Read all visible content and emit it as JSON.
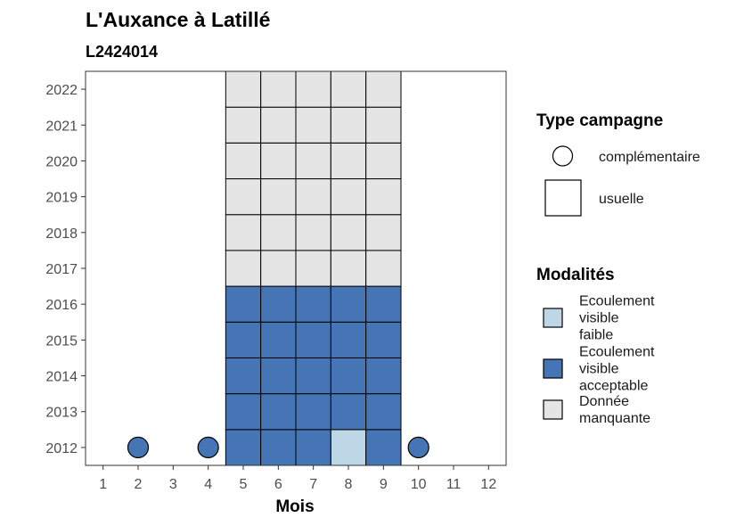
{
  "chart_data": {
    "type": "heatmap",
    "title": "L'Auxance à Latillé",
    "subtitle": "L2424014",
    "xlabel": "Mois",
    "ylabel": "",
    "x_ticks": [
      "1",
      "2",
      "3",
      "4",
      "5",
      "6",
      "7",
      "8",
      "9",
      "10",
      "11",
      "12"
    ],
    "y_ticks": [
      "2012",
      "2013",
      "2014",
      "2015",
      "2016",
      "2017",
      "2018",
      "2019",
      "2020",
      "2021",
      "2022"
    ],
    "xlim": [
      0.5,
      12.5
    ],
    "ylim": [
      2011.5,
      2022.5
    ],
    "grid": false,
    "legend_placement": "right",
    "colors": {
      "faible": "#bdd7e7",
      "acceptable": "#4575b4",
      "manquante": "#e5e5e5",
      "stroke": "#000000",
      "panel_border": "#333333"
    },
    "cells": [
      {
        "year": 2012,
        "month": 5,
        "modalite": "acceptable"
      },
      {
        "year": 2012,
        "month": 6,
        "modalite": "acceptable"
      },
      {
        "year": 2012,
        "month": 7,
        "modalite": "acceptable"
      },
      {
        "year": 2012,
        "month": 8,
        "modalite": "faible"
      },
      {
        "year": 2012,
        "month": 9,
        "modalite": "acceptable"
      },
      {
        "year": 2013,
        "month": 5,
        "modalite": "acceptable"
      },
      {
        "year": 2013,
        "month": 6,
        "modalite": "acceptable"
      },
      {
        "year": 2013,
        "month": 7,
        "modalite": "acceptable"
      },
      {
        "year": 2013,
        "month": 8,
        "modalite": "acceptable"
      },
      {
        "year": 2013,
        "month": 9,
        "modalite": "acceptable"
      },
      {
        "year": 2014,
        "month": 5,
        "modalite": "acceptable"
      },
      {
        "year": 2014,
        "month": 6,
        "modalite": "acceptable"
      },
      {
        "year": 2014,
        "month": 7,
        "modalite": "acceptable"
      },
      {
        "year": 2014,
        "month": 8,
        "modalite": "acceptable"
      },
      {
        "year": 2014,
        "month": 9,
        "modalite": "acceptable"
      },
      {
        "year": 2015,
        "month": 5,
        "modalite": "acceptable"
      },
      {
        "year": 2015,
        "month": 6,
        "modalite": "acceptable"
      },
      {
        "year": 2015,
        "month": 7,
        "modalite": "acceptable"
      },
      {
        "year": 2015,
        "month": 8,
        "modalite": "acceptable"
      },
      {
        "year": 2015,
        "month": 9,
        "modalite": "acceptable"
      },
      {
        "year": 2016,
        "month": 5,
        "modalite": "acceptable"
      },
      {
        "year": 2016,
        "month": 6,
        "modalite": "acceptable"
      },
      {
        "year": 2016,
        "month": 7,
        "modalite": "acceptable"
      },
      {
        "year": 2016,
        "month": 8,
        "modalite": "acceptable"
      },
      {
        "year": 2016,
        "month": 9,
        "modalite": "acceptable"
      },
      {
        "year": 2017,
        "month": 5,
        "modalite": "manquante"
      },
      {
        "year": 2017,
        "month": 6,
        "modalite": "manquante"
      },
      {
        "year": 2017,
        "month": 7,
        "modalite": "manquante"
      },
      {
        "year": 2017,
        "month": 8,
        "modalite": "manquante"
      },
      {
        "year": 2017,
        "month": 9,
        "modalite": "manquante"
      },
      {
        "year": 2018,
        "month": 5,
        "modalite": "manquante"
      },
      {
        "year": 2018,
        "month": 6,
        "modalite": "manquante"
      },
      {
        "year": 2018,
        "month": 7,
        "modalite": "manquante"
      },
      {
        "year": 2018,
        "month": 8,
        "modalite": "manquante"
      },
      {
        "year": 2018,
        "month": 9,
        "modalite": "manquante"
      },
      {
        "year": 2019,
        "month": 5,
        "modalite": "manquante"
      },
      {
        "year": 2019,
        "month": 6,
        "modalite": "manquante"
      },
      {
        "year": 2019,
        "month": 7,
        "modalite": "manquante"
      },
      {
        "year": 2019,
        "month": 8,
        "modalite": "manquante"
      },
      {
        "year": 2019,
        "month": 9,
        "modalite": "manquante"
      },
      {
        "year": 2020,
        "month": 5,
        "modalite": "manquante"
      },
      {
        "year": 2020,
        "month": 6,
        "modalite": "manquante"
      },
      {
        "year": 2020,
        "month": 7,
        "modalite": "manquante"
      },
      {
        "year": 2020,
        "month": 8,
        "modalite": "manquante"
      },
      {
        "year": 2020,
        "month": 9,
        "modalite": "manquante"
      },
      {
        "year": 2021,
        "month": 5,
        "modalite": "manquante"
      },
      {
        "year": 2021,
        "month": 6,
        "modalite": "manquante"
      },
      {
        "year": 2021,
        "month": 7,
        "modalite": "manquante"
      },
      {
        "year": 2021,
        "month": 8,
        "modalite": "manquante"
      },
      {
        "year": 2021,
        "month": 9,
        "modalite": "manquante"
      },
      {
        "year": 2022,
        "month": 5,
        "modalite": "manquante"
      },
      {
        "year": 2022,
        "month": 6,
        "modalite": "manquante"
      },
      {
        "year": 2022,
        "month": 7,
        "modalite": "manquante"
      },
      {
        "year": 2022,
        "month": 8,
        "modalite": "manquante"
      },
      {
        "year": 2022,
        "month": 9,
        "modalite": "manquante"
      }
    ],
    "points": [
      {
        "year": 2012,
        "month": 2,
        "modalite": "acceptable"
      },
      {
        "year": 2012,
        "month": 4,
        "modalite": "acceptable"
      },
      {
        "year": 2012,
        "month": 10,
        "modalite": "acceptable"
      }
    ],
    "legend_type": {
      "title": "Type campagne",
      "items": [
        {
          "shape": "circle",
          "label": "complémentaire"
        },
        {
          "shape": "square",
          "label": "usuelle"
        }
      ]
    },
    "legend_modalites": {
      "title": "Modalités",
      "items": [
        {
          "key": "faible",
          "lines": [
            "Ecoulement",
            "visible",
            "faible"
          ]
        },
        {
          "key": "acceptable",
          "lines": [
            "Ecoulement",
            "visible",
            "acceptable"
          ]
        },
        {
          "key": "manquante",
          "lines": [
            "Donnée",
            "manquante"
          ]
        }
      ]
    }
  }
}
